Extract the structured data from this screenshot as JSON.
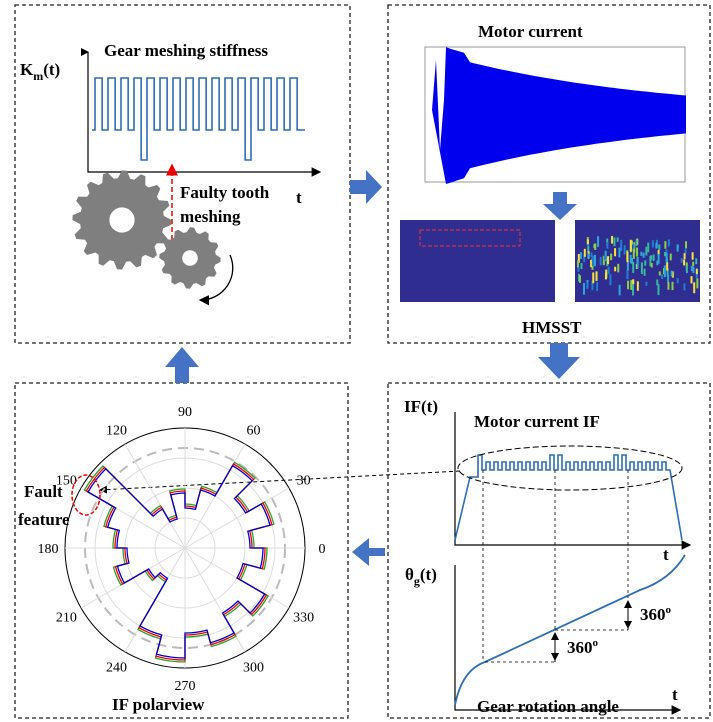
{
  "top_left": {
    "y_label": {
      "base": "K",
      "sub": "m",
      "rest": "(t)"
    },
    "title": "Gear meshing stiffness",
    "x_label": "t",
    "annotation": "Faulty tooth",
    "annotation_2": "meshing"
  },
  "top_right": {
    "title": "Motor current",
    "caption": "HMSST"
  },
  "bottom_right": {
    "if_label": "IF(t)",
    "if_title": "Motor current IF",
    "if_x_label": "t",
    "theta_label": {
      "base": "θ",
      "sub": "g",
      "rest": "(t)"
    },
    "angle_1": {
      "base": "360",
      "sup": "o"
    },
    "angle_2": {
      "base": "360",
      "sup": "o"
    },
    "theta_x_label": "t",
    "caption": "Gear rotation angle"
  },
  "bottom_left": {
    "polar_labels": [
      90,
      60,
      30,
      0,
      330,
      300,
      270,
      240,
      210,
      180,
      150,
      120
    ],
    "fault_label": "Fault",
    "fault_label_2": "feature",
    "caption": "IF polarview"
  }
}
